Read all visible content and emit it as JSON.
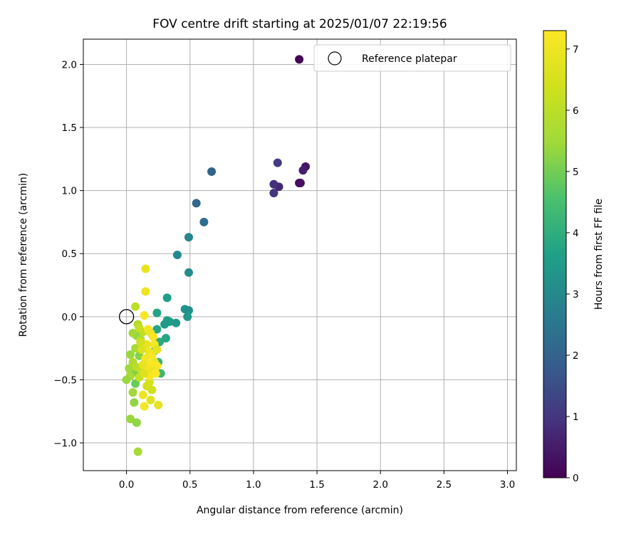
{
  "chart_data": {
    "type": "scatter",
    "title": "FOV centre drift starting at 2025/01/07 22:19:56",
    "xlabel": "Angular distance from reference (arcmin)",
    "ylabel": "Rotation from reference (arcmin)",
    "xlim": [
      -0.34,
      3.07
    ],
    "ylim": [
      -1.22,
      2.2
    ],
    "xticks": [
      0.0,
      0.5,
      1.0,
      1.5,
      2.0,
      2.5,
      3.0
    ],
    "xtick_labels": [
      "0.0",
      "0.5",
      "1.0",
      "1.5",
      "2.0",
      "2.5",
      "3.0"
    ],
    "yticks": [
      -1.0,
      -0.5,
      0.0,
      0.5,
      1.0,
      1.5,
      2.0
    ],
    "ytick_labels": [
      "−1.0",
      "−0.5",
      "0.0",
      "0.5",
      "1.0",
      "1.5",
      "2.0"
    ],
    "grid": true,
    "colormap": "viridis",
    "colorbar": {
      "label": "Hours from first FF file",
      "min": 0,
      "max": 7.3,
      "ticks": [
        0,
        1,
        2,
        3,
        4,
        5,
        6,
        7
      ],
      "tick_labels": [
        "0",
        "1",
        "2",
        "3",
        "4",
        "5",
        "6",
        "7"
      ]
    },
    "legend": {
      "position": "top-right",
      "entries": [
        {
          "label": "Reference platepar",
          "marker": "open-circle"
        }
      ]
    },
    "reference_point": {
      "x": 0.0,
      "y": 0.0
    },
    "points": [
      {
        "x": 1.36,
        "y": 2.04,
        "h": 0.05
      },
      {
        "x": 1.36,
        "y": 1.06,
        "h": 0.15
      },
      {
        "x": 1.37,
        "y": 1.06,
        "h": 0.25
      },
      {
        "x": 1.41,
        "y": 1.19,
        "h": 0.4
      },
      {
        "x": 1.39,
        "y": 1.16,
        "h": 0.55
      },
      {
        "x": 1.2,
        "y": 1.03,
        "h": 0.7
      },
      {
        "x": 1.16,
        "y": 1.05,
        "h": 0.85
      },
      {
        "x": 1.16,
        "y": 0.98,
        "h": 1.0
      },
      {
        "x": 1.19,
        "y": 1.22,
        "h": 1.1
      },
      {
        "x": 0.67,
        "y": 1.15,
        "h": 2.0
      },
      {
        "x": 0.55,
        "y": 0.9,
        "h": 2.1
      },
      {
        "x": 0.61,
        "y": 0.75,
        "h": 2.3
      },
      {
        "x": 0.49,
        "y": 0.63,
        "h": 2.9
      },
      {
        "x": 0.4,
        "y": 0.49,
        "h": 3.0
      },
      {
        "x": 0.49,
        "y": 0.35,
        "h": 3.1
      },
      {
        "x": 0.32,
        "y": 0.15,
        "h": 3.6
      },
      {
        "x": 0.46,
        "y": 0.06,
        "h": 3.3
      },
      {
        "x": 0.49,
        "y": 0.05,
        "h": 3.2
      },
      {
        "x": 0.48,
        "y": 0.0,
        "h": 3.4
      },
      {
        "x": 0.24,
        "y": 0.03,
        "h": 3.7
      },
      {
        "x": 0.32,
        "y": -0.03,
        "h": 3.6
      },
      {
        "x": 0.34,
        "y": -0.04,
        "h": 3.5
      },
      {
        "x": 0.39,
        "y": -0.05,
        "h": 3.4
      },
      {
        "x": 0.3,
        "y": -0.06,
        "h": 3.5
      },
      {
        "x": 0.31,
        "y": -0.17,
        "h": 3.8
      },
      {
        "x": 0.24,
        "y": -0.1,
        "h": 3.8
      },
      {
        "x": 0.26,
        "y": -0.2,
        "h": 3.9
      },
      {
        "x": 0.22,
        "y": -0.27,
        "h": 4.0
      },
      {
        "x": 0.25,
        "y": -0.36,
        "h": 4.1
      },
      {
        "x": 0.27,
        "y": -0.45,
        "h": 4.3
      },
      {
        "x": 0.2,
        "y": -0.44,
        "h": 4.4
      },
      {
        "x": 0.19,
        "y": -0.4,
        "h": 4.6
      },
      {
        "x": 0.15,
        "y": -0.36,
        "h": 4.8
      },
      {
        "x": 0.07,
        "y": -0.53,
        "h": 4.9
      },
      {
        "x": 0.06,
        "y": -0.44,
        "h": 5.1
      },
      {
        "x": 0.08,
        "y": -0.15,
        "h": 5.3
      },
      {
        "x": 0.05,
        "y": -0.13,
        "h": 5.5
      },
      {
        "x": 0.1,
        "y": -0.31,
        "h": 5.2
      },
      {
        "x": 0.03,
        "y": -0.3,
        "h": 5.4
      },
      {
        "x": 0.07,
        "y": -0.25,
        "h": 5.6
      },
      {
        "x": 0.11,
        "y": -0.18,
        "h": 5.7
      },
      {
        "x": 0.02,
        "y": -0.41,
        "h": 5.5
      },
      {
        "x": 0.03,
        "y": -0.47,
        "h": 5.6
      },
      {
        "x": 0.0,
        "y": -0.5,
        "h": 5.4
      },
      {
        "x": 0.05,
        "y": -0.6,
        "h": 5.5
      },
      {
        "x": 0.06,
        "y": -0.68,
        "h": 5.3
      },
      {
        "x": 0.03,
        "y": -0.81,
        "h": 5.4
      },
      {
        "x": 0.08,
        "y": -0.84,
        "h": 5.3
      },
      {
        "x": 0.09,
        "y": -1.07,
        "h": 5.6
      },
      {
        "x": 0.07,
        "y": 0.08,
        "h": 6.0
      },
      {
        "x": 0.09,
        "y": -0.06,
        "h": 5.9
      },
      {
        "x": 0.13,
        "y": -0.12,
        "h": 6.1
      },
      {
        "x": 0.05,
        "y": -0.36,
        "h": 5.8
      },
      {
        "x": 0.08,
        "y": -0.4,
        "h": 6.0
      },
      {
        "x": 0.1,
        "y": -0.48,
        "h": 6.2
      },
      {
        "x": 0.12,
        "y": -0.42,
        "h": 6.3
      },
      {
        "x": 0.16,
        "y": -0.55,
        "h": 6.4
      },
      {
        "x": 0.18,
        "y": -0.52,
        "h": 6.5
      },
      {
        "x": 0.2,
        "y": -0.58,
        "h": 6.4
      },
      {
        "x": 0.19,
        "y": -0.66,
        "h": 6.7
      },
      {
        "x": 0.25,
        "y": -0.7,
        "h": 6.8
      },
      {
        "x": 0.13,
        "y": -0.62,
        "h": 7.0
      },
      {
        "x": 0.14,
        "y": -0.71,
        "h": 7.1
      },
      {
        "x": 0.15,
        "y": 0.38,
        "h": 6.9
      },
      {
        "x": 0.15,
        "y": 0.2,
        "h": 7.0
      },
      {
        "x": 0.14,
        "y": 0.01,
        "h": 7.2
      },
      {
        "x": 0.17,
        "y": -0.1,
        "h": 7.1
      },
      {
        "x": 0.19,
        "y": -0.13,
        "h": 7.0
      },
      {
        "x": 0.21,
        "y": -0.16,
        "h": 7.2
      },
      {
        "x": 0.16,
        "y": -0.22,
        "h": 6.9
      },
      {
        "x": 0.22,
        "y": -0.22,
        "h": 7.1
      },
      {
        "x": 0.18,
        "y": -0.28,
        "h": 7.0
      },
      {
        "x": 0.24,
        "y": -0.26,
        "h": 6.8
      },
      {
        "x": 0.2,
        "y": -0.31,
        "h": 7.2
      },
      {
        "x": 0.15,
        "y": -0.33,
        "h": 7.1
      },
      {
        "x": 0.22,
        "y": -0.36,
        "h": 7.0
      },
      {
        "x": 0.19,
        "y": -0.38,
        "h": 7.3
      },
      {
        "x": 0.24,
        "y": -0.39,
        "h": 7.2
      },
      {
        "x": 0.17,
        "y": -0.41,
        "h": 7.1
      },
      {
        "x": 0.21,
        "y": -0.43,
        "h": 7.0
      },
      {
        "x": 0.13,
        "y": -0.38,
        "h": 6.9
      },
      {
        "x": 0.23,
        "y": -0.45,
        "h": 7.3
      },
      {
        "x": 0.18,
        "y": -0.47,
        "h": 7.2
      },
      {
        "x": 0.14,
        "y": -0.45,
        "h": 6.7
      },
      {
        "x": 0.12,
        "y": -0.26,
        "h": 6.6
      },
      {
        "x": 0.11,
        "y": -0.2,
        "h": 6.4
      },
      {
        "x": 0.1,
        "y": -0.09,
        "h": 6.2
      }
    ]
  }
}
